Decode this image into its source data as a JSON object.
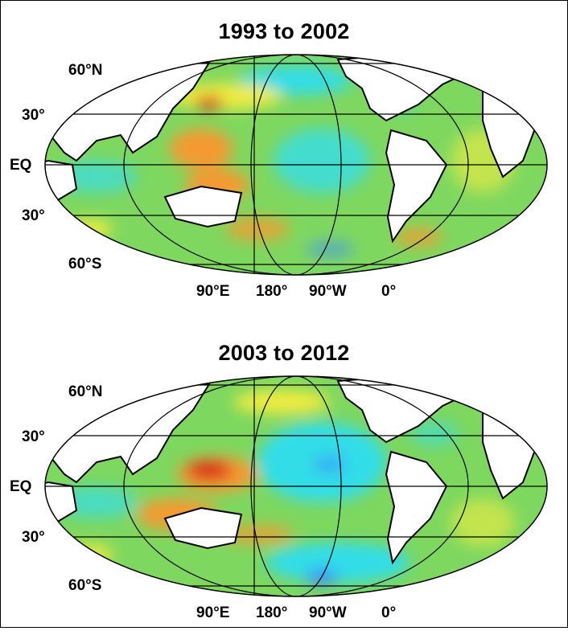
{
  "panels": [
    {
      "title": "1993 to 2002",
      "lat_labels": {
        "n60": "60°N",
        "n30": "30°",
        "eq": "EQ",
        "s30": "30°",
        "s60": "60°S"
      },
      "lon_labels": {
        "e90": "90°E",
        "d180": "180°",
        "w90": "90°W",
        "d0": "0°"
      }
    },
    {
      "title": "2003 to 2012",
      "lat_labels": {
        "n60": "60°N",
        "n30": "30°",
        "eq": "EQ",
        "s30": "30°",
        "s60": "60°S"
      },
      "lon_labels": {
        "e90": "90°E",
        "d180": "180°",
        "w90": "90°W",
        "d0": "0°"
      }
    }
  ],
  "colors": {
    "ocean_base": "#7ed860",
    "cyan": "#33dde8",
    "blue": "#3a90ff",
    "yellow": "#f2ec40",
    "orange": "#f59a30",
    "red": "#d92418",
    "land": "#ffffff",
    "outline": "#000000"
  }
}
